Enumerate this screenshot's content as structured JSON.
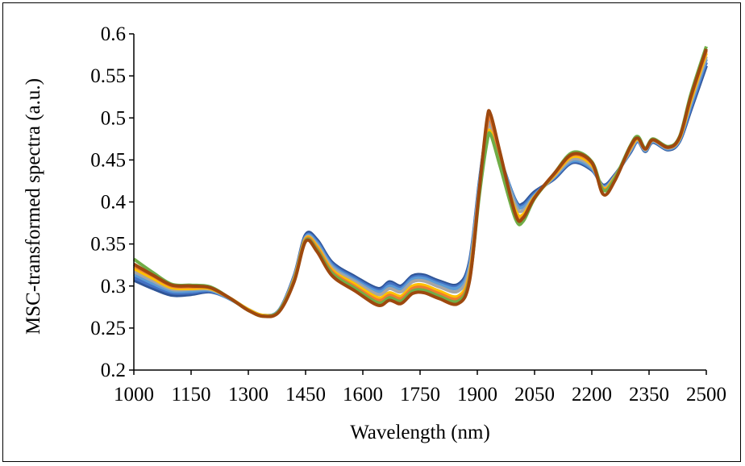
{
  "chart_data": {
    "type": "line",
    "xlabel": "Wavelength  (nm)",
    "ylabel": "MSC-transformed  spectra (a.u.)",
    "xlim": [
      1000,
      2500
    ],
    "ylim": [
      0.2,
      0.6
    ],
    "xticks": [
      "1000",
      "1150",
      "1300",
      "1450",
      "1600",
      "1750",
      "1900",
      "2050",
      "2200",
      "2350",
      "2500"
    ],
    "yticks": [
      "0.2",
      "0.25",
      "0.3",
      "0.35",
      "0.4",
      "0.45",
      "0.5",
      "0.55",
      "0.6"
    ],
    "grid": false,
    "colors": [
      "#2f5597",
      "#4472c4",
      "#5b9bd5",
      "#a5a5a5",
      "#ffc000",
      "#ed7d31",
      "#70ad47",
      "#9e480e",
      "#264478",
      "#c55a11"
    ],
    "x": [
      1000,
      1050,
      1100,
      1150,
      1200,
      1250,
      1300,
      1340,
      1380,
      1420,
      1450,
      1480,
      1520,
      1580,
      1640,
      1670,
      1700,
      1730,
      1760,
      1800,
      1850,
      1880,
      1905,
      1925,
      1935,
      1960,
      2000,
      2020,
      2050,
      2100,
      2150,
      2200,
      2230,
      2260,
      2300,
      2320,
      2340,
      2360,
      2400,
      2430,
      2460,
      2500
    ],
    "series": [
      {
        "values": [
          0.307,
          0.297,
          0.289,
          0.29,
          0.293,
          0.285,
          0.272,
          0.265,
          0.271,
          0.312,
          0.361,
          0.355,
          0.328,
          0.311,
          0.297,
          0.305,
          0.3,
          0.312,
          0.313,
          0.306,
          0.302,
          0.33,
          0.423,
          0.487,
          0.491,
          0.452,
          0.402,
          0.398,
          0.412,
          0.427,
          0.447,
          0.438,
          0.42,
          0.432,
          0.458,
          0.472,
          0.46,
          0.471,
          0.462,
          0.472,
          0.51,
          0.562
        ]
      },
      {
        "values": [
          0.31,
          0.3,
          0.292,
          0.292,
          0.294,
          0.285,
          0.272,
          0.265,
          0.271,
          0.311,
          0.359,
          0.353,
          0.326,
          0.309,
          0.295,
          0.303,
          0.298,
          0.31,
          0.311,
          0.304,
          0.3,
          0.327,
          0.421,
          0.486,
          0.491,
          0.452,
          0.401,
          0.396,
          0.41,
          0.428,
          0.448,
          0.439,
          0.419,
          0.431,
          0.459,
          0.472,
          0.461,
          0.472,
          0.463,
          0.473,
          0.513,
          0.566
        ]
      },
      {
        "values": [
          0.314,
          0.303,
          0.294,
          0.294,
          0.295,
          0.285,
          0.272,
          0.265,
          0.271,
          0.31,
          0.358,
          0.351,
          0.324,
          0.307,
          0.293,
          0.3,
          0.296,
          0.308,
          0.309,
          0.302,
          0.298,
          0.325,
          0.42,
          0.485,
          0.492,
          0.452,
          0.4,
          0.394,
          0.408,
          0.429,
          0.449,
          0.44,
          0.418,
          0.43,
          0.46,
          0.473,
          0.461,
          0.472,
          0.463,
          0.474,
          0.516,
          0.57
        ]
      },
      {
        "values": [
          0.317,
          0.306,
          0.296,
          0.296,
          0.296,
          0.286,
          0.272,
          0.265,
          0.27,
          0.309,
          0.357,
          0.349,
          0.322,
          0.305,
          0.29,
          0.297,
          0.293,
          0.305,
          0.306,
          0.299,
          0.294,
          0.321,
          0.417,
          0.482,
          0.49,
          0.45,
          0.396,
          0.39,
          0.407,
          0.43,
          0.451,
          0.442,
          0.417,
          0.43,
          0.461,
          0.474,
          0.462,
          0.473,
          0.464,
          0.475,
          0.519,
          0.573
        ]
      },
      {
        "values": [
          0.321,
          0.309,
          0.298,
          0.297,
          0.297,
          0.286,
          0.272,
          0.265,
          0.27,
          0.308,
          0.356,
          0.347,
          0.319,
          0.302,
          0.286,
          0.292,
          0.288,
          0.3,
          0.301,
          0.294,
          0.288,
          0.315,
          0.41,
          0.474,
          0.483,
          0.445,
          0.39,
          0.385,
          0.406,
          0.431,
          0.454,
          0.444,
          0.416,
          0.429,
          0.463,
          0.475,
          0.463,
          0.474,
          0.465,
          0.476,
          0.522,
          0.577
        ]
      },
      {
        "values": [
          0.324,
          0.312,
          0.3,
          0.299,
          0.298,
          0.286,
          0.271,
          0.264,
          0.27,
          0.307,
          0.355,
          0.345,
          0.317,
          0.299,
          0.283,
          0.289,
          0.285,
          0.297,
          0.298,
          0.291,
          0.285,
          0.312,
          0.412,
          0.49,
          0.499,
          0.453,
          0.386,
          0.382,
          0.405,
          0.432,
          0.456,
          0.446,
          0.415,
          0.428,
          0.464,
          0.476,
          0.463,
          0.474,
          0.465,
          0.477,
          0.525,
          0.58
        ]
      },
      {
        "values": [
          0.332,
          0.316,
          0.302,
          0.301,
          0.299,
          0.286,
          0.271,
          0.264,
          0.27,
          0.306,
          0.354,
          0.343,
          0.315,
          0.297,
          0.28,
          0.286,
          0.282,
          0.294,
          0.295,
          0.288,
          0.282,
          0.309,
          0.407,
          0.47,
          0.48,
          0.442,
          0.38,
          0.377,
          0.404,
          0.433,
          0.459,
          0.448,
          0.414,
          0.428,
          0.466,
          0.478,
          0.464,
          0.475,
          0.466,
          0.478,
          0.529,
          0.585
        ]
      },
      {
        "values": [
          0.326,
          0.313,
          0.301,
          0.3,
          0.298,
          0.286,
          0.271,
          0.264,
          0.269,
          0.305,
          0.353,
          0.341,
          0.312,
          0.294,
          0.277,
          0.283,
          0.279,
          0.291,
          0.292,
          0.285,
          0.279,
          0.307,
          0.414,
          0.497,
          0.504,
          0.458,
          0.385,
          0.381,
          0.405,
          0.433,
          0.457,
          0.447,
          0.409,
          0.425,
          0.465,
          0.476,
          0.463,
          0.474,
          0.465,
          0.477,
          0.526,
          0.582
        ]
      }
    ]
  }
}
